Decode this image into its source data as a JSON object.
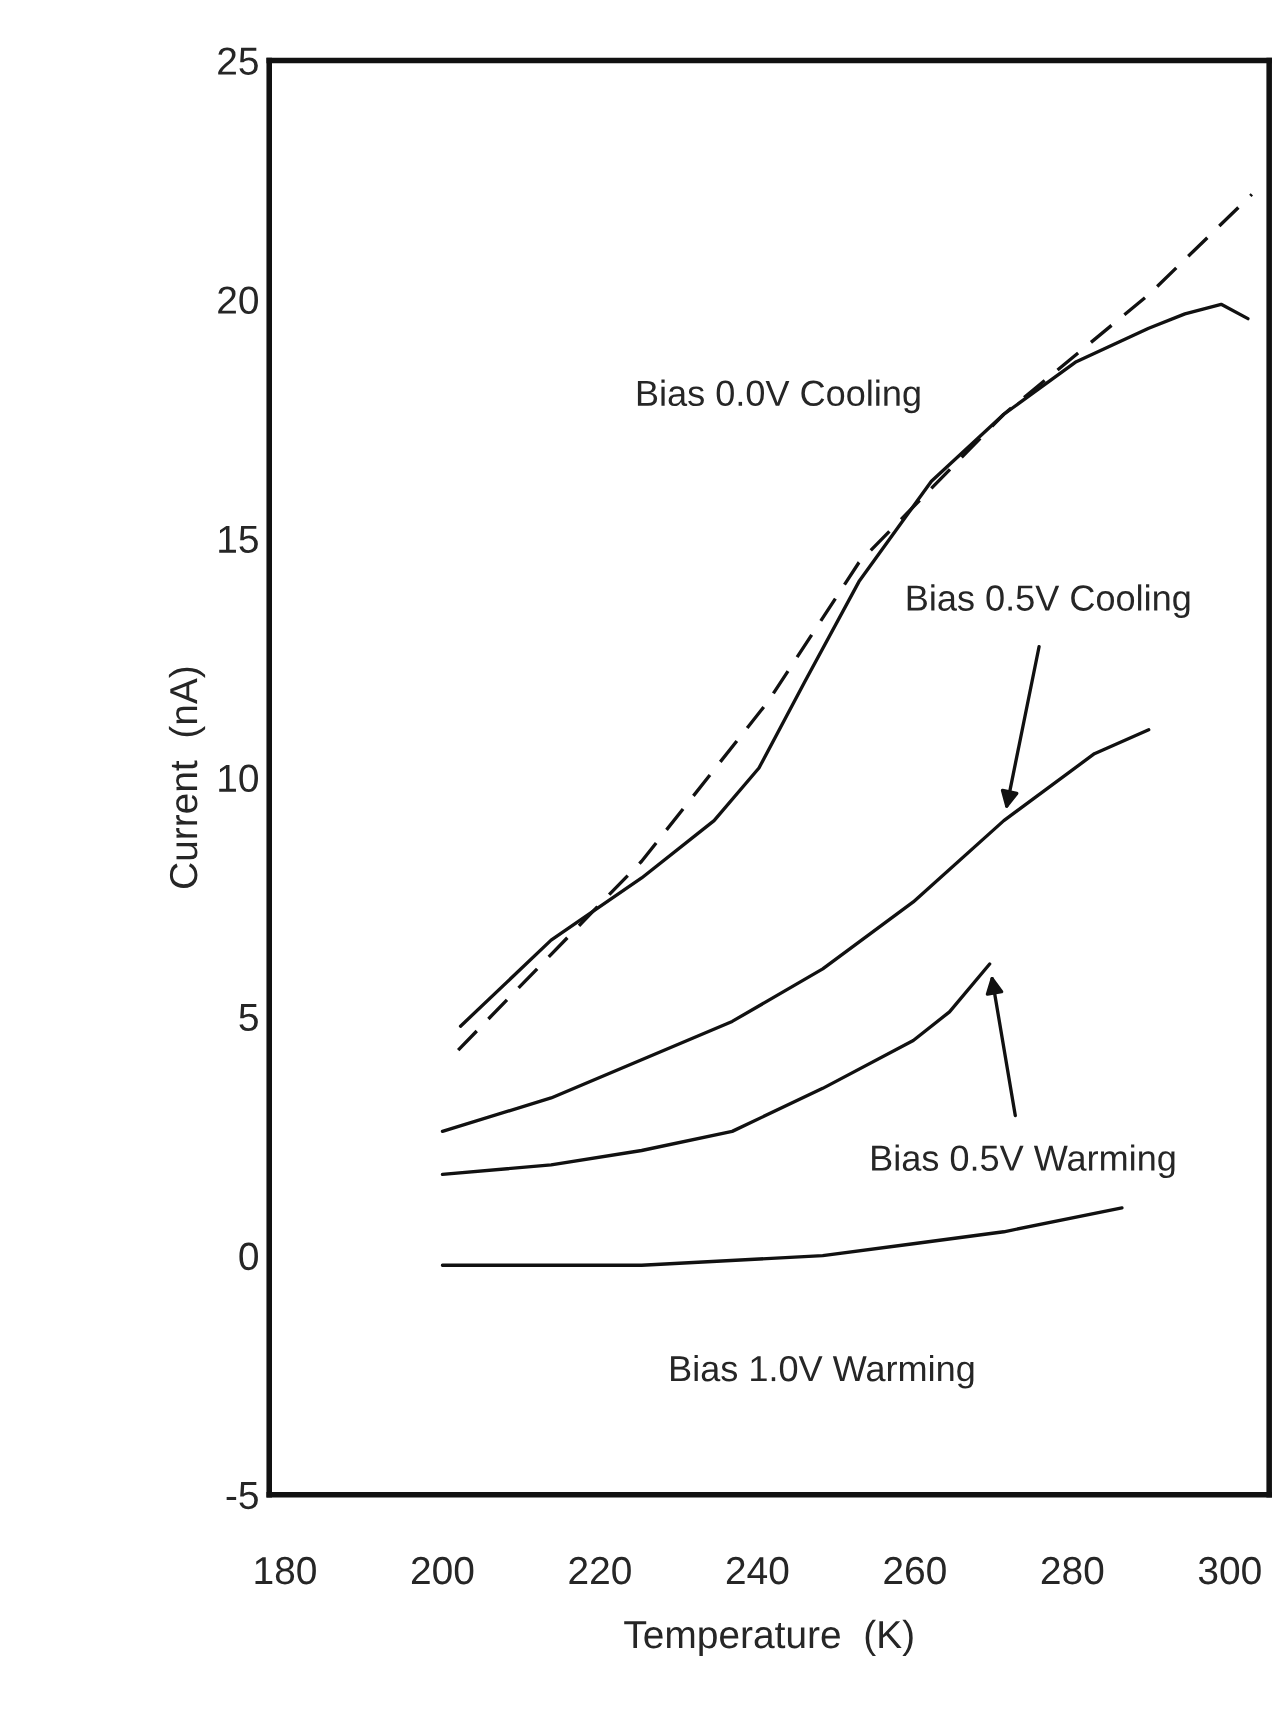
{
  "chart_data": {
    "type": "line",
    "xlabel": "Temperature  (K)",
    "ylabel": "Current  (nA)",
    "xlim": [
      178,
      305
    ],
    "xticks": [
      180,
      200,
      220,
      240,
      260,
      280,
      300
    ],
    "ylim": [
      -5,
      25
    ],
    "yticks": [
      -5,
      0,
      5,
      10,
      15,
      20,
      25
    ],
    "grid": false,
    "legend": false,
    "marker": "none",
    "series": [
      {
        "name": "Bias 0.0V Cooling",
        "color": "#111111",
        "line_style": "solid",
        "x": [
          202.3,
          213.8,
          225.3,
          234.5,
          240.2,
          246.0,
          252.9,
          262.1,
          271.3,
          280.5,
          289.7,
          294.3,
          298.9,
          302.3
        ],
        "values": [
          4.8,
          6.6,
          7.9,
          9.1,
          10.2,
          12.0,
          14.1,
          16.2,
          17.6,
          18.7,
          19.4,
          19.7,
          19.9,
          19.6
        ]
      },
      {
        "color": "#111111",
        "line_style": "dashed",
        "x": [
          202,
          225.3,
          241.4,
          252.9,
          271.3,
          289.7,
          302.8
        ],
        "values": [
          4.3,
          8.25,
          11.6,
          14.5,
          17.6,
          20.1,
          22.2
        ]
      },
      {
        "name": "Bias 0.5V Cooling",
        "color": "#111111",
        "line_style": "solid",
        "x": [
          200,
          213.8,
          225.3,
          236.8,
          248.3,
          259.8,
          271.3,
          282.8,
          289.7
        ],
        "values": [
          2.6,
          3.3,
          4.1,
          4.9,
          6.0,
          7.4,
          9.1,
          10.5,
          11.0
        ]
      },
      {
        "name": "Bias 0.5V Warming",
        "color": "#111111",
        "line_style": "solid",
        "x": [
          200,
          213.8,
          225.3,
          236.8,
          248.3,
          259.8,
          264.4,
          269.5
        ],
        "values": [
          1.7,
          1.9,
          2.2,
          2.6,
          3.5,
          4.5,
          5.1,
          6.1
        ]
      },
      {
        "name": "Bias 1.0V Warming",
        "color": "#111111",
        "line_style": "solid",
        "x": [
          200,
          225.3,
          248.3,
          259.8,
          271.3,
          286.3
        ],
        "values": [
          -0.2,
          -0.2,
          0,
          0.25,
          0.5,
          1.0
        ]
      }
    ]
  }
}
